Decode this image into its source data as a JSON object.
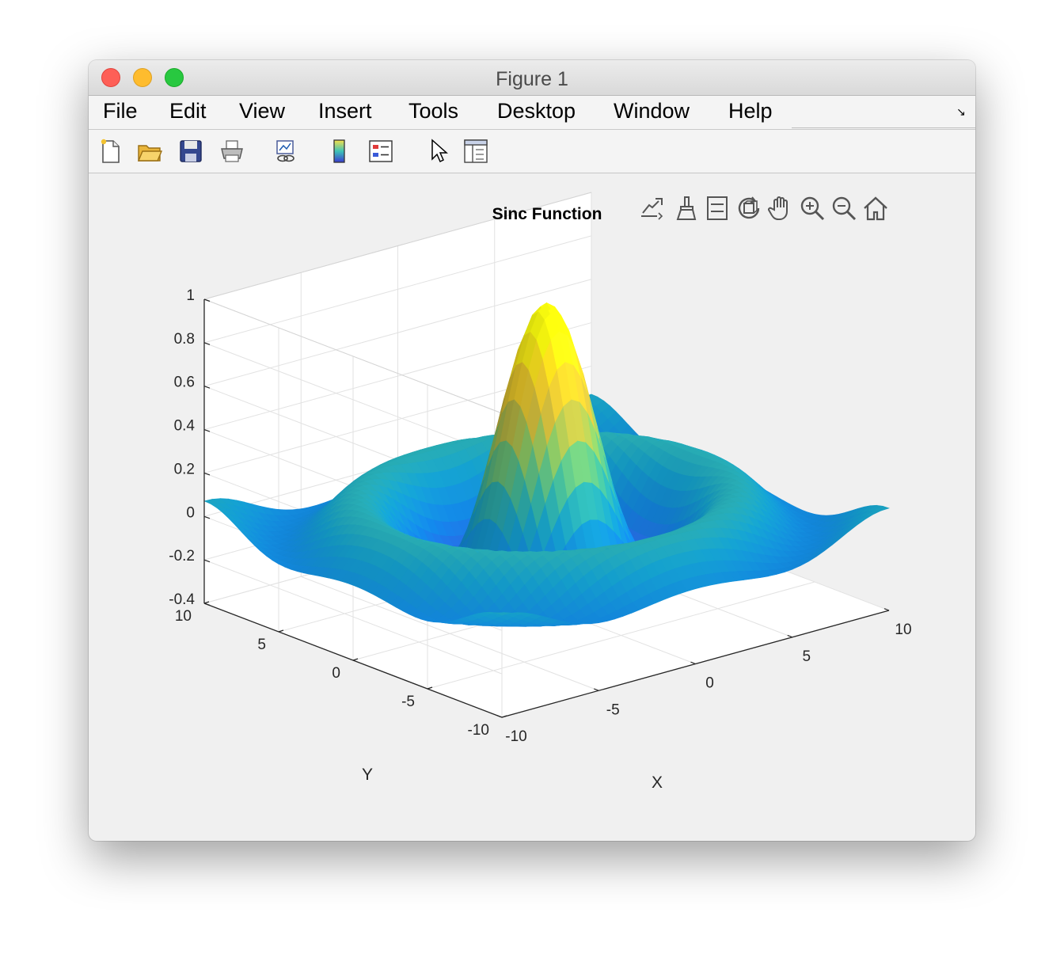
{
  "window": {
    "title": "Figure 1"
  },
  "menu": {
    "items": [
      "File",
      "Edit",
      "View",
      "Insert",
      "Tools",
      "Desktop",
      "Window",
      "Help"
    ]
  },
  "toolbar": {
    "buttons": [
      "new-figure-icon",
      "open-file-icon",
      "save-icon",
      "print-icon",
      "link-plot-icon",
      "colorbar-icon",
      "legend-icon",
      "pointer-icon",
      "property-inspector-icon"
    ]
  },
  "axes_toolbar": {
    "buttons": [
      "export-icon",
      "brush-icon",
      "data-tips-icon",
      "rotate-3d-icon",
      "pan-icon",
      "zoom-in-icon",
      "zoom-out-icon",
      "home-icon"
    ]
  },
  "chart_data": {
    "type": "surface",
    "title": "Sinc Function",
    "xlabel": "X",
    "ylabel": "Y",
    "zlabel": "",
    "function": "sin(r)/r, r = sqrt(x^2 + y^2)",
    "xlim": [
      -10,
      10
    ],
    "ylim": [
      -10,
      10
    ],
    "zlim": [
      -0.4,
      1
    ],
    "xticks": [
      "-10",
      "-5",
      "0",
      "5",
      "10"
    ],
    "yticks": [
      "-10",
      "-5",
      "0",
      "5",
      "10"
    ],
    "zticks": [
      "-0.4",
      "-0.2",
      "0",
      "0.2",
      "0.4",
      "0.6",
      "0.8",
      "1"
    ],
    "colormap": "parula",
    "grid": true,
    "view": "3-D default (az -37.5, el 30)"
  }
}
